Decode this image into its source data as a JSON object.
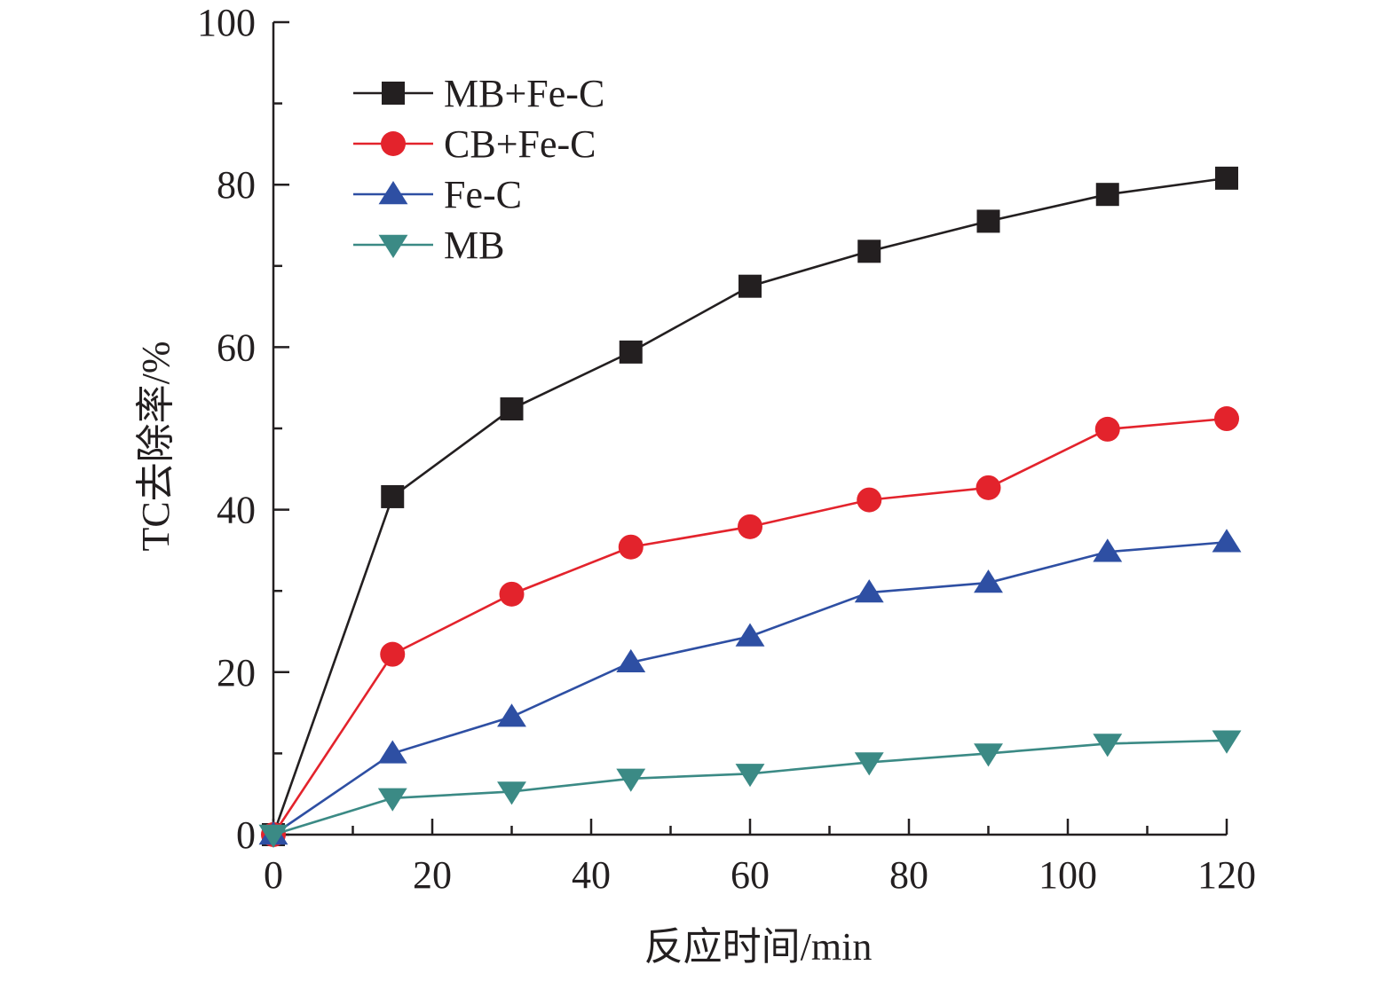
{
  "chart_data": {
    "type": "line",
    "title": "",
    "xlabel": "反应时间/min",
    "ylabel": "TC去除率/%",
    "xlim": [
      0,
      120
    ],
    "ylim": [
      0,
      100
    ],
    "xticks": [
      0,
      20,
      40,
      60,
      80,
      100,
      120
    ],
    "yticks": [
      0,
      20,
      40,
      60,
      80,
      100
    ],
    "grid": false,
    "legend_position": "top-left",
    "x": [
      0,
      15,
      30,
      45,
      60,
      75,
      90,
      105,
      120
    ],
    "series": [
      {
        "name": "MB+Fe-C",
        "color": "#231f20",
        "marker": "square",
        "values": [
          0,
          41.6,
          52.4,
          59.4,
          67.5,
          71.8,
          75.5,
          78.8,
          80.8
        ]
      },
      {
        "name": "CB+Fe-C",
        "color": "#e3232c",
        "marker": "circle",
        "values": [
          0,
          22.2,
          29.6,
          35.4,
          37.9,
          41.2,
          42.7,
          49.9,
          51.2
        ]
      },
      {
        "name": "Fe-C",
        "color": "#2e4fa3",
        "marker": "triangle-up",
        "values": [
          0,
          10.0,
          14.5,
          21.2,
          24.4,
          29.8,
          31.0,
          34.8,
          36.0
        ]
      },
      {
        "name": "MB",
        "color": "#3b8a85",
        "marker": "triangle-down",
        "values": [
          0,
          4.5,
          5.3,
          6.9,
          7.5,
          8.9,
          10.0,
          11.2,
          11.6
        ]
      }
    ]
  }
}
